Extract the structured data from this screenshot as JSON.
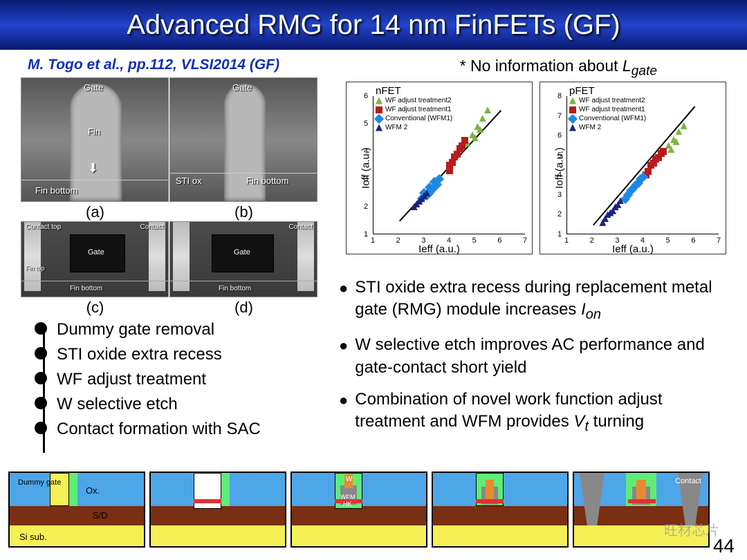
{
  "title": "Advanced RMG for 14 nm FinFETs (GF)",
  "citation": "M. Togo et al., pp.112, VLSI2014 (GF)",
  "note_prefix": "* No information about ",
  "note_var": "L",
  "note_sub": "gate",
  "tem": {
    "a": {
      "gate": "Gate",
      "fin": "Fin",
      "bottom": "Fin bottom",
      "sub": "(a)"
    },
    "b": {
      "gate": "Gate",
      "sti": "STI ox",
      "bottom": "Fin bottom",
      "sub": "(b)"
    },
    "c": {
      "top": "Contact top",
      "contact": "Contact",
      "gate": "Gate",
      "fintop": "Fin top",
      "bottom": "Fin bottom",
      "sub": "(c)"
    },
    "d": {
      "contact": "Contact",
      "gate": "Gate",
      "bottom": "Fin bottom",
      "sub": "(d)"
    }
  },
  "steps": [
    "Dummy gate removal",
    "STI oxide extra recess",
    "WF adjust treatment",
    "W selective etch",
    "Contact formation with SAC"
  ],
  "charts": {
    "nfet": {
      "title": "nFET",
      "ylabel": "Ioff (a.u.)",
      "xlabel": "Ieff (a.u.)",
      "xticks": [
        1,
        2,
        3,
        4,
        5,
        6,
        7
      ],
      "yticks": [
        1,
        2,
        3,
        4,
        5,
        6
      ],
      "series": [
        {
          "name": "WF adjust treatment2",
          "color": "#7cb342",
          "shape": "tri"
        },
        {
          "name": "WF adjust treatment1",
          "color": "#b71c1c",
          "shape": "sq"
        },
        {
          "name": "Conventional (WFM1)",
          "color": "#1e88e5",
          "shape": "dia"
        },
        {
          "name": "WFM 2",
          "color": "#1a237e",
          "shape": "tri"
        }
      ],
      "data": {
        "tri_g": [
          [
            4.7,
            4.3
          ],
          [
            4.9,
            4.6
          ],
          [
            5.1,
            4.9
          ],
          [
            5.3,
            5.2
          ],
          [
            5.5,
            5.5
          ],
          [
            5.0,
            4.5
          ],
          [
            5.2,
            4.8
          ]
        ],
        "sq_r": [
          [
            4.0,
            3.5
          ],
          [
            4.2,
            3.8
          ],
          [
            4.4,
            4.1
          ],
          [
            4.6,
            4.4
          ],
          [
            4.1,
            3.6
          ],
          [
            4.3,
            3.9
          ],
          [
            4.5,
            4.2
          ],
          [
            4.0,
            3.3
          ]
        ],
        "dia_b": [
          [
            3.0,
            2.5
          ],
          [
            3.2,
            2.7
          ],
          [
            3.4,
            2.9
          ],
          [
            3.1,
            2.4
          ],
          [
            3.3,
            2.6
          ],
          [
            3.5,
            2.8
          ],
          [
            2.9,
            2.3
          ],
          [
            3.6,
            3.0
          ],
          [
            3.2,
            2.5
          ],
          [
            3.4,
            2.7
          ]
        ],
        "tri_n": [
          [
            2.7,
            2.1
          ],
          [
            2.9,
            2.3
          ],
          [
            3.0,
            2.4
          ],
          [
            2.8,
            2.2
          ],
          [
            3.1,
            2.5
          ],
          [
            2.6,
            2.0
          ]
        ]
      }
    },
    "pfet": {
      "title": "pFET",
      "ylabel": "Ioff (a.u.)",
      "xlabel": "Ieff (a.u.)",
      "xticks": [
        1,
        2,
        3,
        4,
        5,
        6,
        7
      ],
      "yticks": [
        1,
        2,
        3,
        4,
        5,
        6,
        7,
        8
      ],
      "series": [
        {
          "name": "WF adjust treatment2",
          "color": "#7cb342",
          "shape": "tri"
        },
        {
          "name": "WF adjust treatment1",
          "color": "#b71c1c",
          "shape": "sq"
        },
        {
          "name": "Conventional (WFM1)",
          "color": "#1e88e5",
          "shape": "dia"
        },
        {
          "name": "WFM 2",
          "color": "#1a237e",
          "shape": "tri"
        }
      ],
      "data": {
        "tri_g": [
          [
            5.0,
            5.5
          ],
          [
            5.2,
            5.8
          ],
          [
            5.4,
            6.2
          ],
          [
            5.6,
            6.5
          ],
          [
            5.1,
            5.3
          ],
          [
            5.3,
            5.7
          ]
        ],
        "sq_r": [
          [
            4.3,
            4.5
          ],
          [
            4.5,
            4.8
          ],
          [
            4.7,
            5.1
          ],
          [
            4.2,
            4.2
          ],
          [
            4.4,
            4.6
          ],
          [
            4.6,
            4.9
          ],
          [
            4.8,
            5.2
          ],
          [
            4.1,
            4.0
          ]
        ],
        "dia_b": [
          [
            3.5,
            3.2
          ],
          [
            3.7,
            3.5
          ],
          [
            3.9,
            3.8
          ],
          [
            3.4,
            3.0
          ],
          [
            3.6,
            3.3
          ],
          [
            3.8,
            3.6
          ],
          [
            4.0,
            3.9
          ],
          [
            3.3,
            2.8
          ]
        ],
        "tri_n": [
          [
            2.5,
            1.8
          ],
          [
            2.7,
            2.1
          ],
          [
            2.9,
            2.4
          ],
          [
            2.6,
            2.0
          ],
          [
            2.8,
            2.2
          ],
          [
            3.0,
            2.5
          ],
          [
            2.4,
            1.6
          ],
          [
            3.1,
            2.7
          ]
        ]
      }
    }
  },
  "bullets": [
    {
      "text": "STI oxide extra recess during replacement metal gate (RMG) module increases ",
      "ital": "I",
      "sub": "on"
    },
    {
      "text": "W selective etch improves AC performance and gate-contact short yield"
    },
    {
      "text": "Combination of novel work function adjust treatment and WFM provides ",
      "ital": "V",
      "sub": "t",
      "suffix": " turning"
    }
  ],
  "diag_labels": {
    "dummy": "Dummy gate",
    "ox": "Ox.",
    "sd": "S/D",
    "sub": "Si sub.",
    "w": "W",
    "wfm": "WFM",
    "hk": "HK",
    "contact": "Contact"
  },
  "page": "44",
  "watermark": "旺材芯片"
}
